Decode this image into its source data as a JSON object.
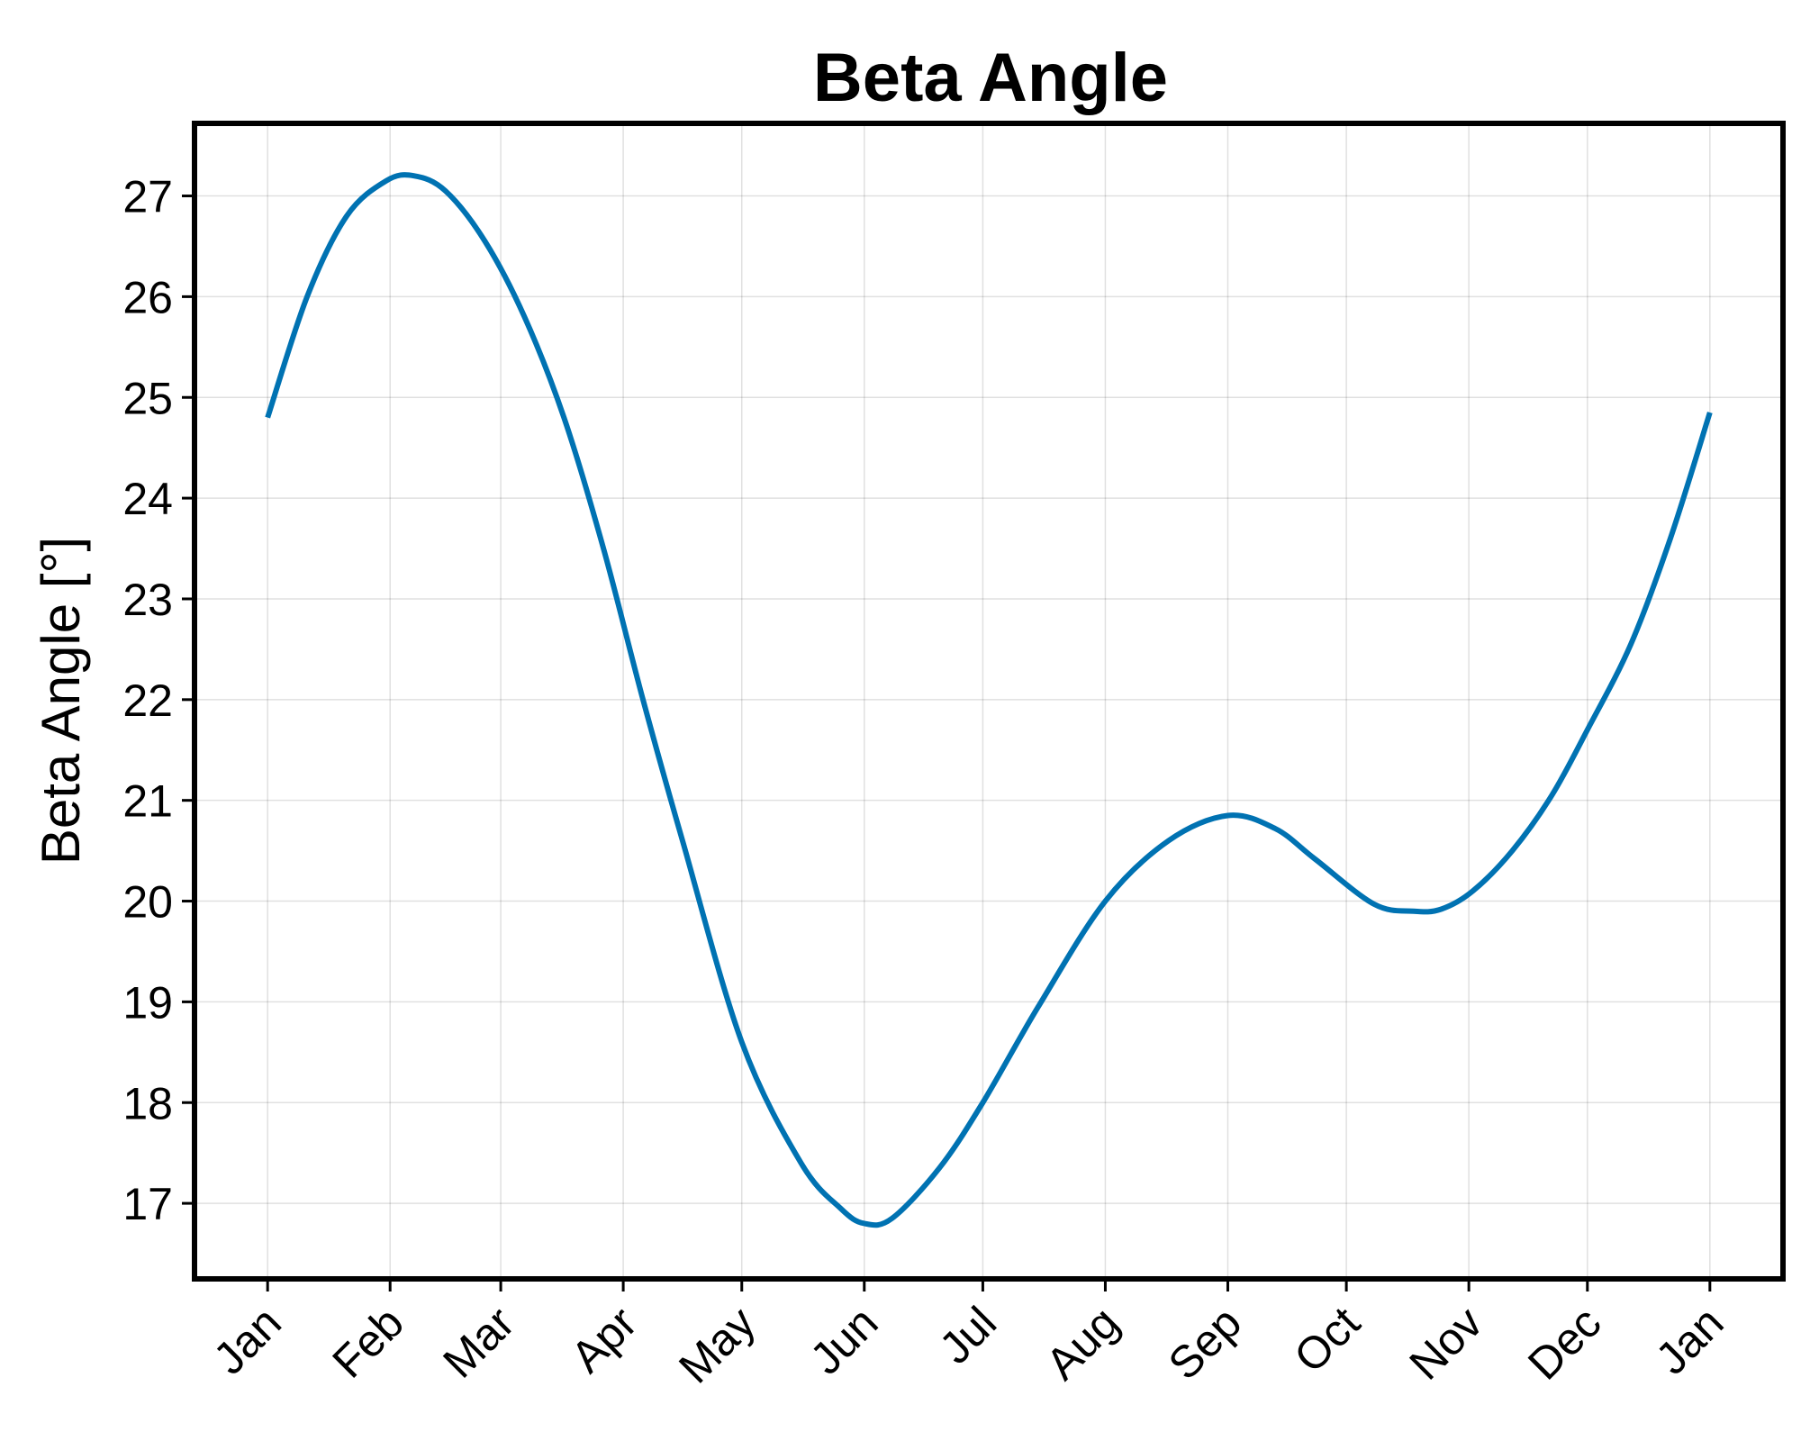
{
  "chart_data": {
    "type": "line",
    "title": "Beta Angle",
    "xlabel": "",
    "ylabel": "Beta Angle [°]",
    "x_tick_labels": [
      "Jan",
      "Feb",
      "Mar",
      "Apr",
      "May",
      "Jun",
      "Jul",
      "Aug",
      "Sep",
      "Oct",
      "Nov",
      "Dec",
      "Jan"
    ],
    "x_tick_days": [
      0,
      31,
      59,
      90,
      120,
      151,
      181,
      212,
      243,
      273,
      304,
      334,
      365
    ],
    "xlim": [
      -18.5,
      383.5
    ],
    "ylim": [
      16.25,
      27.72
    ],
    "y_ticks": [
      17,
      18,
      19,
      20,
      21,
      22,
      23,
      24,
      25,
      26,
      27
    ],
    "grid": true,
    "series": [
      {
        "color": "#0072b2",
        "x": [
          0,
          10,
          20,
          30,
          37,
          45,
          55,
          65,
          75,
          85,
          95,
          105,
          120,
          135,
          145,
          151,
          158,
          170,
          181,
          195,
          212,
          228,
          243,
          255,
          265,
          280,
          290,
          297,
          305,
          315,
          325,
          334,
          345,
          355,
          365
        ],
        "y": [
          24.8,
          26.0,
          26.8,
          27.15,
          27.2,
          27.05,
          26.55,
          25.8,
          24.8,
          23.5,
          22.0,
          20.6,
          18.6,
          17.4,
          16.95,
          16.8,
          16.85,
          17.35,
          18.0,
          18.95,
          20.0,
          20.6,
          20.85,
          20.72,
          20.42,
          19.97,
          19.9,
          19.92,
          20.1,
          20.5,
          21.05,
          21.7,
          22.55,
          23.6,
          24.85
        ]
      }
    ]
  }
}
